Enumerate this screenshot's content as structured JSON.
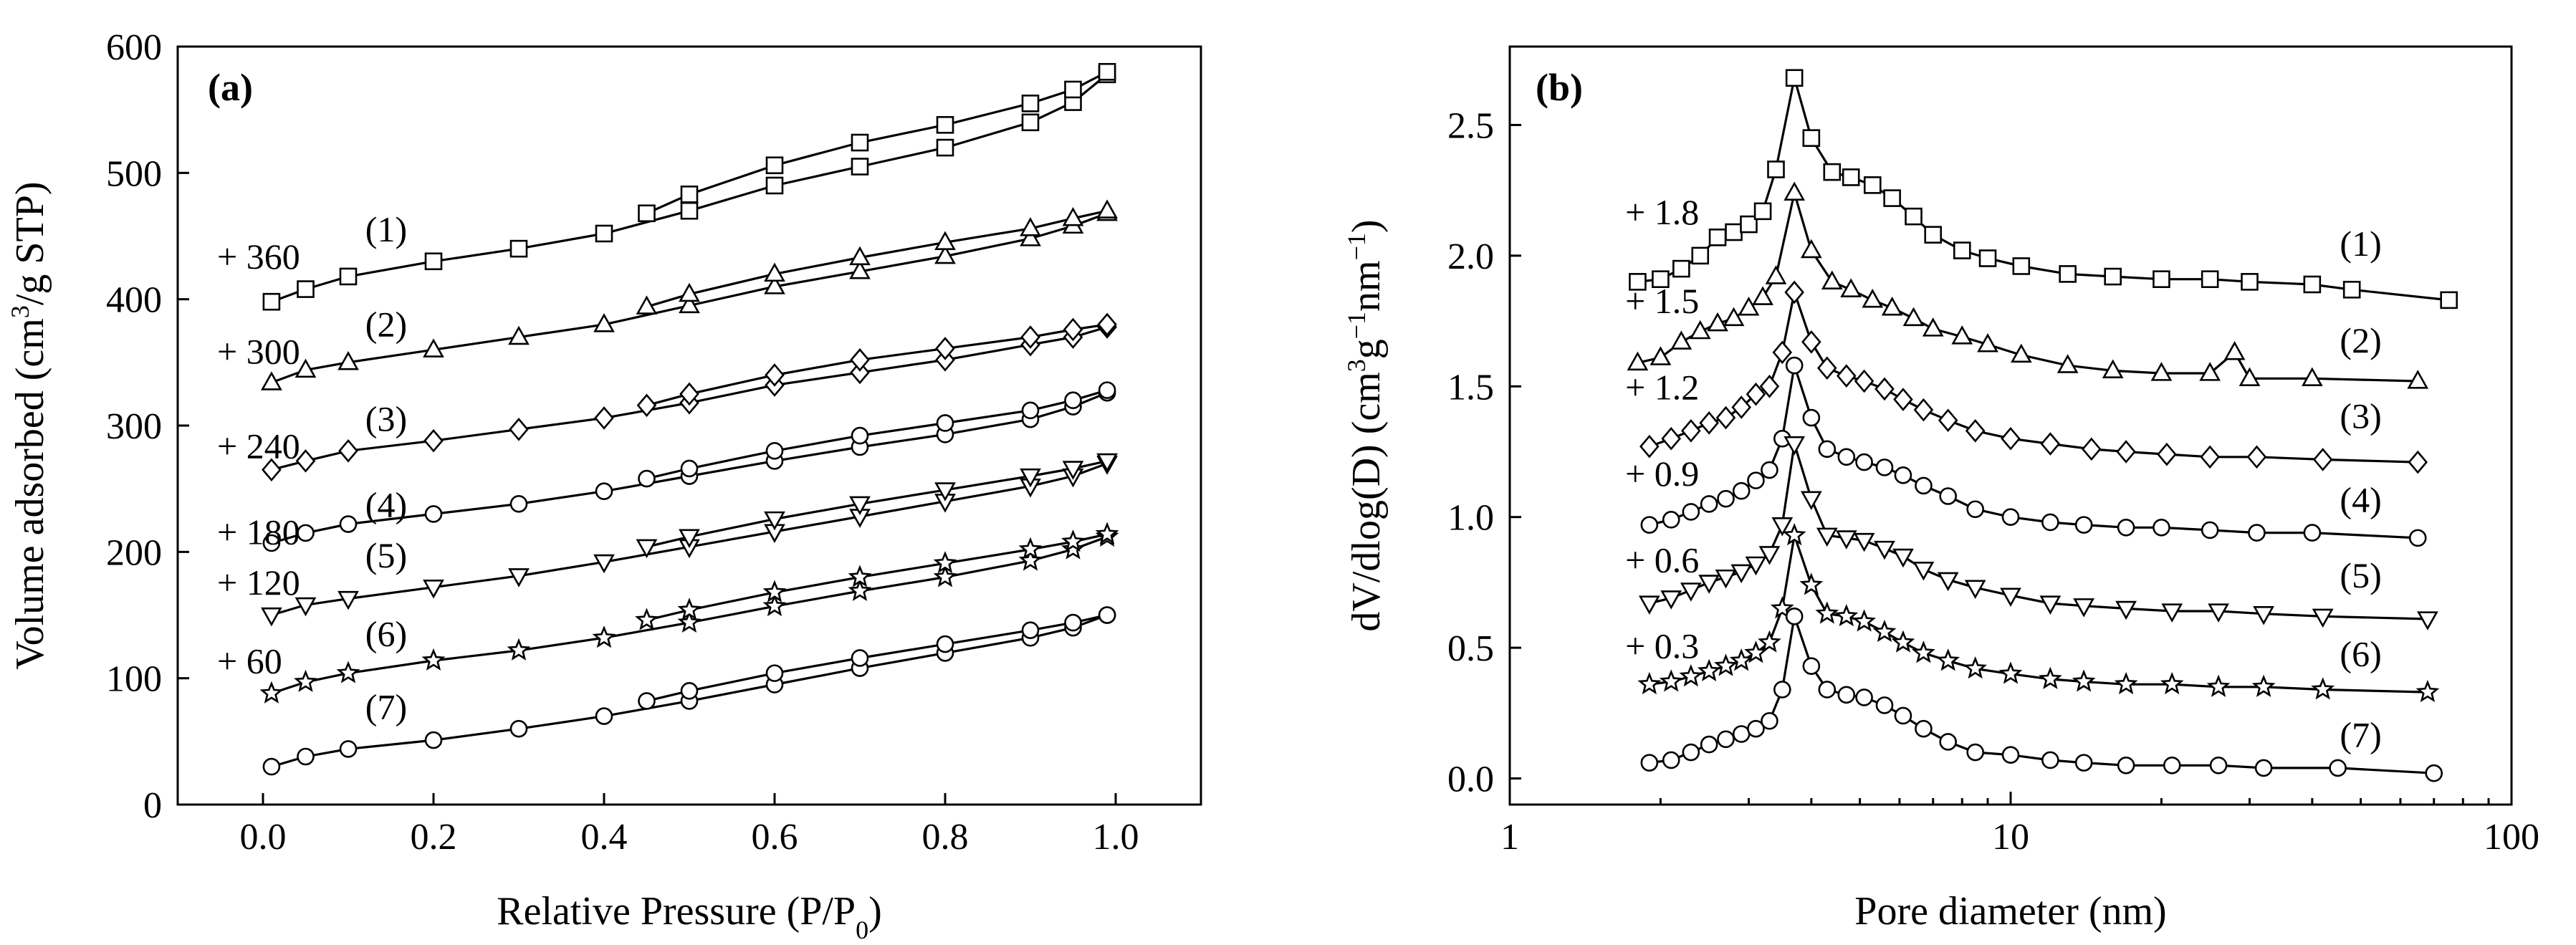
{
  "chart_data": [
    {
      "panel": "(a)",
      "type": "line",
      "xlabel": "Relative Pressure (P/P0)",
      "xlabel_parts": [
        "Relative Pressure (P/P",
        "0",
        ")"
      ],
      "ylabel": "Volume adsorbed (cm3/g STP)",
      "ylabel_parts": [
        "Volume adsorbed (cm",
        "3",
        "/g STP)"
      ],
      "xlim": [
        -0.1,
        1.1
      ],
      "ylim": [
        0,
        600
      ],
      "xticks": [
        0.0,
        0.2,
        0.4,
        0.6,
        0.8,
        1.0
      ],
      "xtick_labels": [
        "0.0",
        "0.2",
        "0.4",
        "0.6",
        "0.8",
        "1.0"
      ],
      "yticks": [
        0,
        100,
        200,
        300,
        400,
        500,
        600
      ],
      "ytick_labels": [
        "0",
        "100",
        "200",
        "300",
        "400",
        "500",
        "600"
      ],
      "annotations": [
        {
          "offset": "+ 360",
          "label": "(1)",
          "x": 0.12,
          "y": 440
        },
        {
          "offset": "+ 300",
          "label": "(2)",
          "x": 0.12,
          "y": 365
        },
        {
          "offset": "+ 240",
          "label": "(3)",
          "x": 0.12,
          "y": 290
        },
        {
          "offset": "+ 180",
          "label": "(4)",
          "x": 0.12,
          "y": 222
        },
        {
          "offset": "+ 120",
          "label": "(5)",
          "x": 0.12,
          "y": 182
        },
        {
          "offset": "+ 60",
          "label": "(6)",
          "x": 0.12,
          "y": 120
        },
        {
          "offset": "",
          "label": "(7)",
          "x": 0.12,
          "y": 62
        }
      ],
      "series": [
        {
          "name": "(1)",
          "marker": "square",
          "adsorption": {
            "x": [
              0.01,
              0.05,
              0.1,
              0.2,
              0.3,
              0.4,
              0.5,
              0.6,
              0.7,
              0.8,
              0.9,
              0.95,
              0.99
            ],
            "y": [
              398,
              408,
              418,
              430,
              440,
              452,
              470,
              490,
              505,
              520,
              540,
              556,
              578
            ]
          },
          "desorption": {
            "x": [
              0.99,
              0.95,
              0.9,
              0.8,
              0.7,
              0.6,
              0.5,
              0.45
            ],
            "y": [
              580,
              566,
              555,
              538,
              524,
              506,
              483,
              468
            ]
          }
        },
        {
          "name": "(2)",
          "marker": "triangle-up",
          "adsorption": {
            "x": [
              0.01,
              0.05,
              0.1,
              0.2,
              0.3,
              0.4,
              0.5,
              0.6,
              0.7,
              0.8,
              0.9,
              0.95,
              0.99
            ],
            "y": [
              334,
              344,
              350,
              360,
              370,
              380,
              395,
              410,
              422,
              434,
              448,
              458,
              468
            ]
          },
          "desorption": {
            "x": [
              0.99,
              0.95,
              0.9,
              0.8,
              0.7,
              0.6,
              0.5,
              0.45
            ],
            "y": [
              470,
              464,
              456,
              445,
              433,
              420,
              404,
              394
            ]
          }
        },
        {
          "name": "(3)",
          "marker": "diamond",
          "adsorption": {
            "x": [
              0.01,
              0.05,
              0.1,
              0.2,
              0.3,
              0.4,
              0.5,
              0.6,
              0.7,
              0.8,
              0.9,
              0.95,
              0.99
            ],
            "y": [
              265,
              272,
              280,
              288,
              297,
              306,
              318,
              332,
              342,
              352,
              364,
              370,
              378
            ]
          },
          "desorption": {
            "x": [
              0.99,
              0.95,
              0.9,
              0.8,
              0.7,
              0.6,
              0.5,
              0.45
            ],
            "y": [
              380,
              376,
              370,
              361,
              352,
              340,
              325,
              316
            ]
          }
        },
        {
          "name": "(4)",
          "marker": "circle",
          "adsorption": {
            "x": [
              0.01,
              0.05,
              0.1,
              0.2,
              0.3,
              0.4,
              0.5,
              0.6,
              0.7,
              0.8,
              0.9,
              0.95,
              0.99
            ],
            "y": [
              207,
              215,
              222,
              230,
              238,
              248,
              260,
              272,
              283,
              293,
              305,
              315,
              326
            ]
          },
          "desorption": {
            "x": [
              0.99,
              0.95,
              0.9,
              0.8,
              0.7,
              0.6,
              0.5,
              0.45
            ],
            "y": [
              328,
              320,
              312,
              302,
              292,
              280,
              266,
              258
            ]
          }
        },
        {
          "name": "(5)",
          "marker": "triangle-down",
          "adsorption": {
            "x": [
              0.01,
              0.05,
              0.1,
              0.2,
              0.3,
              0.4,
              0.5,
              0.6,
              0.7,
              0.8,
              0.9,
              0.95,
              0.99
            ],
            "y": [
              150,
              158,
              163,
              172,
              181,
              192,
              204,
              216,
              228,
              240,
              252,
              260,
              270
            ]
          },
          "desorption": {
            "x": [
              0.99,
              0.95,
              0.9,
              0.8,
              0.7,
              0.6,
              0.5,
              0.45
            ],
            "y": [
              272,
              266,
              260,
              249,
              238,
              226,
              212,
              204
            ]
          }
        },
        {
          "name": "(6)",
          "marker": "star",
          "adsorption": {
            "x": [
              0.01,
              0.05,
              0.1,
              0.2,
              0.3,
              0.4,
              0.5,
              0.6,
              0.7,
              0.8,
              0.9,
              0.95,
              0.99
            ],
            "y": [
              88,
              97,
              104,
              114,
              122,
              132,
              144,
              157,
              169,
              180,
              193,
              202,
              212
            ]
          },
          "desorption": {
            "x": [
              0.99,
              0.95,
              0.9,
              0.8,
              0.7,
              0.6,
              0.5,
              0.45
            ],
            "y": [
              214,
              208,
              202,
              191,
              180,
              168,
              154,
              146
            ]
          }
        },
        {
          "name": "(7)",
          "marker": "circle",
          "adsorption": {
            "x": [
              0.01,
              0.05,
              0.1,
              0.2,
              0.3,
              0.4,
              0.5,
              0.6,
              0.7,
              0.8,
              0.9,
              0.95,
              0.99
            ],
            "y": [
              30,
              38,
              44,
              51,
              60,
              70,
              82,
              95,
              108,
              120,
              132,
              140,
              150
            ]
          },
          "desorption": {
            "x": [
              0.99,
              0.95,
              0.9,
              0.8,
              0.7,
              0.6,
              0.5,
              0.45
            ],
            "y": [
              150,
              144,
              138,
              127,
              116,
              104,
              90,
              82
            ]
          }
        }
      ]
    },
    {
      "panel": "(b)",
      "type": "line",
      "xscale": "log",
      "xlabel": "Pore diameter (nm)",
      "ylabel": "dV/dlog(D) (cm3g-1nm-1)",
      "ylabel_parts": [
        "dV/dlog(D) (cm",
        "3",
        "g",
        "−1",
        "nm",
        "−1",
        ")"
      ],
      "xlim": [
        1,
        100
      ],
      "ylim": [
        -0.1,
        2.8
      ],
      "xticks": [
        1,
        10,
        100
      ],
      "xtick_labels": [
        "1",
        "10",
        "100"
      ],
      "yticks": [
        0.0,
        0.5,
        1.0,
        1.5,
        2.0,
        2.5
      ],
      "ytick_labels": [
        "0.0",
        "0.5",
        "1.0",
        "1.5",
        "2.0",
        "2.5"
      ],
      "offset_annotations": [
        {
          "text": "+ 1.8",
          "x": 1.7,
          "y": 2.12
        },
        {
          "text": "+ 1.5",
          "x": 1.7,
          "y": 1.78
        },
        {
          "text": "+ 1.2",
          "x": 1.7,
          "y": 1.45
        },
        {
          "text": "+ 0.9",
          "x": 1.7,
          "y": 1.12
        },
        {
          "text": "+ 0.6",
          "x": 1.7,
          "y": 0.79
        },
        {
          "text": "+ 0.3",
          "x": 1.7,
          "y": 0.46
        }
      ],
      "label_annotations": [
        {
          "text": "(1)",
          "x": 50,
          "y": 2.0
        },
        {
          "text": "(2)",
          "x": 50,
          "y": 1.63
        },
        {
          "text": "(3)",
          "x": 50,
          "y": 1.34
        },
        {
          "text": "(4)",
          "x": 50,
          "y": 1.02
        },
        {
          "text": "(5)",
          "x": 50,
          "y": 0.73
        },
        {
          "text": "(6)",
          "x": 50,
          "y": 0.43
        },
        {
          "text": "(7)",
          "x": 50,
          "y": 0.12
        }
      ],
      "series": [
        {
          "name": "(1)",
          "marker": "square",
          "x": [
            1.8,
            2.0,
            2.2,
            2.4,
            2.6,
            2.8,
            3.0,
            3.2,
            3.4,
            3.7,
            4.0,
            4.4,
            4.8,
            5.3,
            5.8,
            6.4,
            7.0,
            8.0,
            9.0,
            10.5,
            13,
            16,
            20,
            25,
            30,
            40,
            48,
            75
          ],
          "y": [
            1.9,
            1.91,
            1.95,
            2.0,
            2.07,
            2.09,
            2.12,
            2.17,
            2.33,
            2.68,
            2.45,
            2.32,
            2.3,
            2.27,
            2.22,
            2.15,
            2.08,
            2.02,
            1.99,
            1.96,
            1.93,
            1.92,
            1.91,
            1.91,
            1.9,
            1.89,
            1.87,
            1.83
          ]
        },
        {
          "name": "(2)",
          "marker": "triangle-up",
          "x": [
            1.8,
            2.0,
            2.2,
            2.4,
            2.6,
            2.8,
            3.0,
            3.2,
            3.4,
            3.7,
            4.0,
            4.4,
            4.8,
            5.3,
            5.8,
            6.4,
            7.0,
            8.0,
            9.0,
            10.5,
            13,
            16,
            20,
            25,
            28,
            30,
            40,
            65
          ],
          "y": [
            1.59,
            1.61,
            1.67,
            1.71,
            1.74,
            1.76,
            1.8,
            1.84,
            1.92,
            2.24,
            2.02,
            1.9,
            1.87,
            1.83,
            1.8,
            1.76,
            1.72,
            1.69,
            1.66,
            1.62,
            1.58,
            1.56,
            1.55,
            1.55,
            1.63,
            1.53,
            1.53,
            1.52
          ]
        },
        {
          "name": "(3)",
          "marker": "diamond",
          "x": [
            1.9,
            2.1,
            2.3,
            2.5,
            2.7,
            2.9,
            3.1,
            3.3,
            3.5,
            3.7,
            4.0,
            4.3,
            4.7,
            5.1,
            5.6,
            6.1,
            6.7,
            7.5,
            8.5,
            10,
            12,
            14.5,
            17,
            20.5,
            25,
            31,
            42,
            65
          ],
          "y": [
            1.27,
            1.3,
            1.33,
            1.36,
            1.38,
            1.42,
            1.47,
            1.5,
            1.63,
            1.86,
            1.67,
            1.57,
            1.54,
            1.52,
            1.49,
            1.45,
            1.41,
            1.37,
            1.33,
            1.3,
            1.28,
            1.26,
            1.25,
            1.24,
            1.23,
            1.23,
            1.22,
            1.21
          ]
        },
        {
          "name": "(4)",
          "marker": "circle",
          "x": [
            1.9,
            2.1,
            2.3,
            2.5,
            2.7,
            2.9,
            3.1,
            3.3,
            3.5,
            3.7,
            4.0,
            4.3,
            4.7,
            5.1,
            5.6,
            6.1,
            6.7,
            7.5,
            8.5,
            10,
            12,
            14,
            17,
            20,
            25,
            31,
            40,
            65
          ],
          "y": [
            0.97,
            0.99,
            1.02,
            1.05,
            1.07,
            1.1,
            1.14,
            1.18,
            1.3,
            1.58,
            1.38,
            1.26,
            1.23,
            1.21,
            1.19,
            1.16,
            1.12,
            1.08,
            1.03,
            1.0,
            0.98,
            0.97,
            0.96,
            0.96,
            0.95,
            0.94,
            0.94,
            0.92
          ]
        },
        {
          "name": "(5)",
          "marker": "triangle-down",
          "x": [
            1.9,
            2.1,
            2.3,
            2.5,
            2.7,
            2.9,
            3.1,
            3.3,
            3.5,
            3.7,
            4.0,
            4.3,
            4.7,
            5.1,
            5.6,
            6.1,
            6.7,
            7.5,
            8.5,
            10,
            12,
            14,
            17,
            21,
            26,
            32,
            42,
            68
          ],
          "y": [
            0.67,
            0.69,
            0.72,
            0.75,
            0.77,
            0.79,
            0.82,
            0.86,
            0.97,
            1.28,
            1.07,
            0.93,
            0.92,
            0.91,
            0.88,
            0.85,
            0.8,
            0.76,
            0.73,
            0.7,
            0.67,
            0.66,
            0.65,
            0.64,
            0.64,
            0.63,
            0.62,
            0.61
          ]
        },
        {
          "name": "(6)",
          "marker": "star",
          "x": [
            1.9,
            2.1,
            2.3,
            2.5,
            2.7,
            2.9,
            3.1,
            3.3,
            3.5,
            3.7,
            4.0,
            4.3,
            4.7,
            5.1,
            5.6,
            6.1,
            6.7,
            7.5,
            8.5,
            10,
            12,
            14,
            17,
            21,
            26,
            32,
            42,
            68
          ],
          "y": [
            0.36,
            0.37,
            0.39,
            0.41,
            0.43,
            0.45,
            0.48,
            0.52,
            0.65,
            0.93,
            0.74,
            0.63,
            0.62,
            0.6,
            0.56,
            0.52,
            0.48,
            0.45,
            0.42,
            0.4,
            0.38,
            0.37,
            0.36,
            0.36,
            0.35,
            0.35,
            0.34,
            0.33
          ]
        },
        {
          "name": "(7)",
          "marker": "circle",
          "x": [
            1.9,
            2.1,
            2.3,
            2.5,
            2.7,
            2.9,
            3.1,
            3.3,
            3.5,
            3.7,
            4.0,
            4.3,
            4.7,
            5.1,
            5.6,
            6.1,
            6.7,
            7.5,
            8.5,
            10,
            12,
            14,
            17,
            21,
            26,
            32,
            45,
            70
          ],
          "y": [
            0.06,
            0.07,
            0.1,
            0.13,
            0.15,
            0.17,
            0.19,
            0.22,
            0.34,
            0.62,
            0.43,
            0.34,
            0.32,
            0.31,
            0.28,
            0.24,
            0.19,
            0.14,
            0.1,
            0.09,
            0.07,
            0.06,
            0.05,
            0.05,
            0.05,
            0.04,
            0.04,
            0.02
          ]
        }
      ]
    }
  ]
}
